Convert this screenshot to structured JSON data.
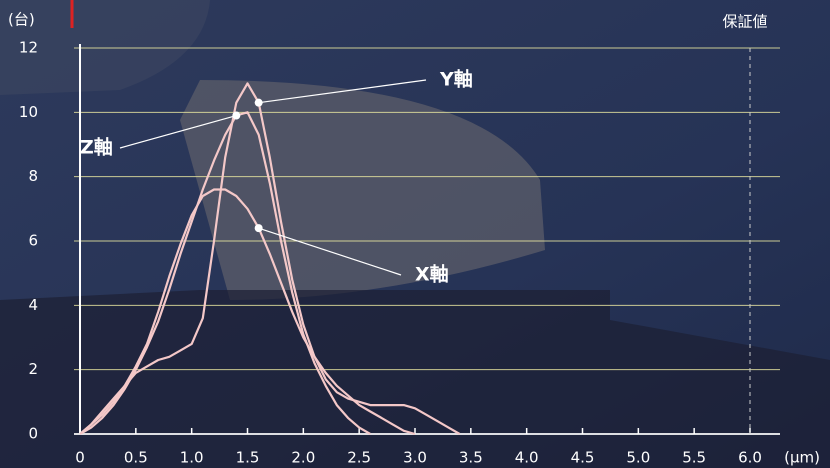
{
  "chart_data": {
    "type": "line",
    "y_label": "(台)",
    "x_label": "(μm)",
    "x": [
      0,
      0.1,
      0.2,
      0.3,
      0.4,
      0.5,
      0.6,
      0.7,
      0.8,
      0.9,
      1.0,
      1.1,
      1.2,
      1.3,
      1.4,
      1.5,
      1.6,
      1.7,
      1.8,
      1.9,
      2.0,
      2.1,
      2.2,
      2.3,
      2.4,
      2.5,
      2.6,
      2.7,
      2.8,
      2.9,
      3.0,
      3.1,
      3.2,
      3.3,
      3.4
    ],
    "series": [
      {
        "name": "Y軸",
        "color": "#f4c8c8",
        "values": [
          0,
          0.3,
          0.7,
          1.1,
          1.5,
          1.9,
          2.1,
          2.3,
          2.4,
          2.6,
          2.8,
          3.6,
          6.0,
          8.6,
          10.3,
          10.9,
          10.3,
          8.6,
          6.6,
          4.8,
          3.4,
          2.4,
          1.7,
          1.3,
          1.1,
          1.0,
          0.9,
          0.9,
          0.9,
          0.9,
          0.8,
          0.6,
          0.4,
          0.2,
          0
        ]
      },
      {
        "name": "Z軸",
        "color": "#f4c8c8",
        "values": [
          0,
          0.2,
          0.5,
          0.9,
          1.4,
          2.0,
          2.7,
          3.5,
          4.5,
          5.6,
          6.6,
          7.6,
          8.5,
          9.3,
          9.9,
          10.0,
          9.3,
          7.8,
          6.0,
          4.4,
          3.1,
          2.2,
          1.5,
          0.9,
          0.5,
          0.2,
          0,
          null,
          null,
          null,
          null,
          null,
          null,
          null,
          null
        ]
      },
      {
        "name": "X軸",
        "color": "#f4c8c8",
        "values": [
          0,
          0.3,
          0.6,
          1.0,
          1.5,
          2.1,
          2.8,
          3.8,
          4.9,
          5.9,
          6.8,
          7.4,
          7.6,
          7.6,
          7.4,
          7.0,
          6.4,
          5.6,
          4.7,
          3.8,
          3.0,
          2.4,
          1.9,
          1.5,
          1.2,
          0.9,
          0.7,
          0.5,
          0.3,
          0.1,
          0,
          null,
          null,
          null,
          null
        ]
      }
    ],
    "xlim": [
      0,
      6.0
    ],
    "ylim": [
      0,
      12
    ],
    "xticks": [
      0,
      0.5,
      {
        "value": 1,
        "label": "1.0"
      },
      1.5,
      {
        "value": 2,
        "label": "2.0"
      },
      2.5,
      {
        "value": 3,
        "label": "3.0"
      },
      3.5,
      {
        "value": 4,
        "label": "4.0"
      },
      4.5,
      {
        "value": 5,
        "label": "5.0"
      },
      5.5,
      {
        "value": 6,
        "label": "6.0"
      }
    ],
    "yticks": [
      0,
      2,
      4,
      6,
      8,
      10,
      12
    ],
    "grid": true,
    "guarantee_line": {
      "value": 6,
      "label": "保証値"
    }
  }
}
